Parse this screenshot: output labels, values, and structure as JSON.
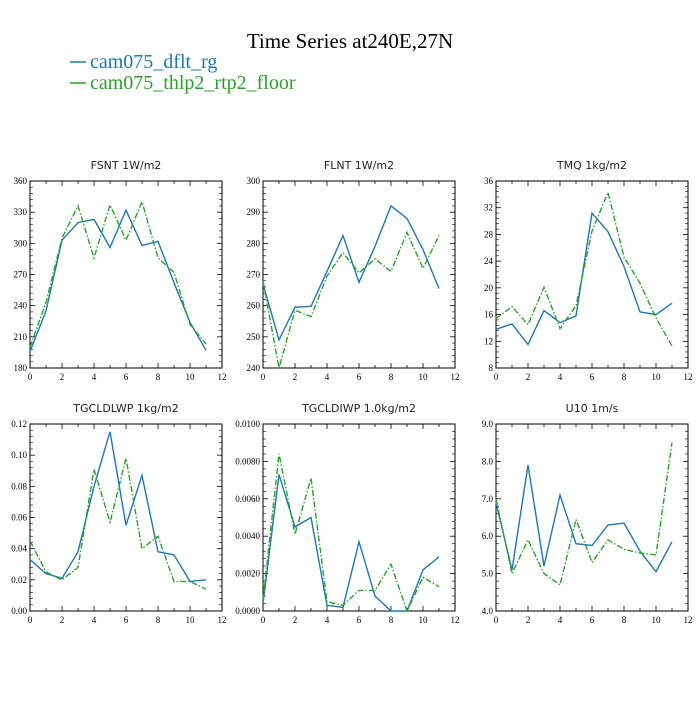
{
  "figure": {
    "title": "Time Series at240E,27N",
    "legend": [
      {
        "label": "cam075_dflt_rg",
        "color": "#1f77b4",
        "dash": "solid"
      },
      {
        "label": "cam075_thlp2_rtp2_floor",
        "color": "#2ca02c",
        "dash": "dashdot"
      }
    ]
  },
  "chart_data": [
    {
      "type": "line",
      "title": "FSNT   1W/m2",
      "x": [
        0,
        1,
        2,
        3,
        4,
        5,
        6,
        7,
        8,
        9,
        10,
        11
      ],
      "xlim": [
        0,
        12
      ],
      "xticks": [
        "0",
        "2",
        "4",
        "6",
        "8",
        "10",
        "12"
      ],
      "ylim": [
        180,
        360
      ],
      "yticks": [
        "180",
        "210",
        "240",
        "270",
        "300",
        "330",
        "360"
      ],
      "series": [
        {
          "name": "cam075_dflt_rg",
          "color": "#1f77b4",
          "values": [
            196,
            235,
            303,
            320,
            323,
            296,
            332,
            298,
            302,
            262,
            224,
            197
          ]
        },
        {
          "name": "cam075_thlp2_rtp2_floor",
          "color": "#2ca02c",
          "values": [
            200,
            243,
            305,
            336,
            286,
            337,
            303,
            340,
            286,
            272,
            222,
            203
          ]
        }
      ]
    },
    {
      "type": "line",
      "title": "FLNT   1W/m2",
      "x": [
        0,
        1,
        2,
        3,
        4,
        5,
        6,
        7,
        8,
        9,
        10,
        11
      ],
      "xlim": [
        0,
        12
      ],
      "xticks": [
        "0",
        "2",
        "4",
        "6",
        "8",
        "10",
        "12"
      ],
      "ylim": [
        240,
        300
      ],
      "yticks": [
        "240",
        "250",
        "260",
        "270",
        "280",
        "290",
        "300"
      ],
      "series": [
        {
          "name": "cam075_dflt_rg",
          "color": "#1f77b4",
          "values": [
            267,
            249,
            259.5,
            259.8,
            271,
            282.5,
            267.5,
            279,
            292,
            288,
            278,
            265.5
          ]
        },
        {
          "name": "cam075_thlp2_rtp2_floor",
          "color": "#2ca02c",
          "values": [
            268,
            240,
            258.5,
            256.5,
            269.5,
            277,
            270.5,
            275,
            271,
            283.5,
            272,
            282.5
          ]
        }
      ]
    },
    {
      "type": "line",
      "title": "TMQ   1kg/m2",
      "x": [
        0,
        1,
        2,
        3,
        4,
        5,
        6,
        7,
        8,
        9,
        10,
        11
      ],
      "xlim": [
        0,
        12
      ],
      "xticks": [
        "0",
        "2",
        "4",
        "6",
        "8",
        "10",
        "12"
      ],
      "ylim": [
        8,
        36
      ],
      "yticks": [
        "8",
        "12",
        "16",
        "20",
        "24",
        "28",
        "32",
        "36"
      ],
      "series": [
        {
          "name": "cam075_dflt_rg",
          "color": "#1f77b4",
          "values": [
            13.8,
            14.6,
            11.5,
            16.6,
            14.8,
            15.8,
            31.2,
            28.4,
            23.2,
            16.4,
            16.0,
            17.7
          ]
        },
        {
          "name": "cam075_thlp2_rtp2_floor",
          "color": "#2ca02c",
          "values": [
            15.4,
            17.2,
            14.5,
            20.1,
            13.9,
            17.3,
            28.5,
            34.3,
            24.6,
            20.7,
            15.5,
            11.3
          ]
        }
      ]
    },
    {
      "type": "line",
      "title": "TGCLDLWP   1kg/m2",
      "x": [
        0,
        1,
        2,
        3,
        4,
        5,
        6,
        7,
        8,
        9,
        10,
        11
      ],
      "xlim": [
        0,
        12
      ],
      "xticks": [
        "0",
        "2",
        "4",
        "6",
        "8",
        "10",
        "12"
      ],
      "ylim": [
        0,
        0.12
      ],
      "yticks": [
        "0.00",
        "0.02",
        "0.04",
        "0.06",
        "0.08",
        "0.10",
        "0.12"
      ],
      "series": [
        {
          "name": "cam075_dflt_rg",
          "color": "#1f77b4",
          "values": [
            0.033,
            0.024,
            0.021,
            0.038,
            0.08,
            0.115,
            0.055,
            0.087,
            0.038,
            0.036,
            0.019,
            0.02
          ]
        },
        {
          "name": "cam075_thlp2_rtp2_floor",
          "color": "#2ca02c",
          "values": [
            0.045,
            0.025,
            0.02,
            0.028,
            0.091,
            0.057,
            0.098,
            0.04,
            0.048,
            0.019,
            0.019,
            0.014
          ]
        }
      ]
    },
    {
      "type": "line",
      "title": "TGCLDIWP   1.0kg/m2",
      "x": [
        0,
        1,
        2,
        3,
        4,
        5,
        6,
        7,
        8,
        9,
        10,
        11
      ],
      "xlim": [
        0,
        12
      ],
      "xticks": [
        "0",
        "2",
        "4",
        "6",
        "8",
        "10",
        "12"
      ],
      "ylim": [
        0,
        0.01
      ],
      "yticks": [
        "0.0000",
        "0.0020",
        "0.0040",
        "0.0060",
        "0.0080",
        "0.0100"
      ],
      "series": [
        {
          "name": "cam075_dflt_rg",
          "color": "#1f77b4",
          "values": [
            0.0004,
            0.0073,
            0.0045,
            0.005,
            0.0003,
            0.0002,
            0.0037,
            0.0008,
            0.0,
            0.0,
            0.0022,
            0.0029
          ]
        },
        {
          "name": "cam075_thlp2_rtp2_floor",
          "color": "#2ca02c",
          "values": [
            0.0006,
            0.0084,
            0.0041,
            0.0071,
            0.0005,
            0.0003,
            0.0011,
            0.0011,
            0.0025,
            0.0,
            0.0018,
            0.0013
          ]
        }
      ]
    },
    {
      "type": "line",
      "title": "U10   1m/s",
      "x": [
        0,
        1,
        2,
        3,
        4,
        5,
        6,
        7,
        8,
        9,
        10,
        11
      ],
      "xlim": [
        0,
        12
      ],
      "xticks": [
        "0",
        "2",
        "4",
        "6",
        "8",
        "10",
        "12"
      ],
      "ylim": [
        4,
        9
      ],
      "yticks": [
        "4.0",
        "5.0",
        "6.0",
        "7.0",
        "8.0",
        "9.0"
      ],
      "series": [
        {
          "name": "cam075_dflt_rg",
          "color": "#1f77b4",
          "values": [
            6.9,
            5.1,
            7.9,
            5.2,
            7.1,
            5.8,
            5.75,
            6.3,
            6.35,
            5.6,
            5.05,
            5.85
          ]
        },
        {
          "name": "cam075_thlp2_rtp2_floor",
          "color": "#2ca02c",
          "values": [
            7.0,
            5.0,
            5.9,
            5.0,
            4.7,
            6.45,
            5.3,
            5.9,
            5.65,
            5.55,
            5.5,
            8.5
          ]
        }
      ]
    }
  ]
}
